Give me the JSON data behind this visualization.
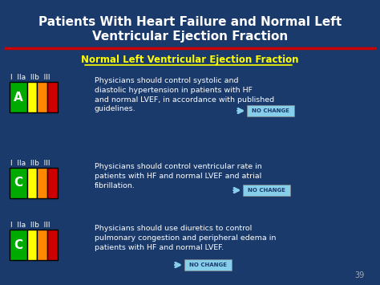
{
  "title_line1": "Patients With Heart Failure and Normal Left",
  "title_line2": "Ventricular Ejection Fraction",
  "subtitle": "Normal Left Ventricular Ejection Fraction",
  "bg_color": "#1a3a6b",
  "title_bg_color": "#1a3a6b",
  "red_line_color": "#cc0000",
  "subtitle_color": "#ffff00",
  "subtitle_underline": true,
  "title_color": "#ffffff",
  "text_color": "#ffffff",
  "rows": [
    {
      "class_label": "I  IIa  IIb  III",
      "grade": "A",
      "grade_bg": "#00aa00",
      "bar_colors": [
        "#ffff00",
        "#ff8800",
        "#cc0000"
      ],
      "text": "Physicians should control systolic and diastolic hypertension in patients with HF and normal LVEF, in accordance with published guidelines.",
      "arrow_label": "NO CHANGE"
    },
    {
      "class_label": "I  IIa  IIb  III",
      "grade": "C",
      "grade_bg": "#00aa00",
      "bar_colors": [
        "#ffff00",
        "#ff8800",
        "#cc0000"
      ],
      "text": "Physicians should control ventricular rate in patients with HF and normal LVEF and atrial fibrillation.",
      "arrow_label": "NO CHANGE"
    },
    {
      "class_label": "I  IIa  IIb  III",
      "grade": "C",
      "grade_bg": "#00aa00",
      "bar_colors": [
        "#ffff00",
        "#ff8800",
        "#cc0000"
      ],
      "text": "Physicians should use diuretics to control pulmonary congestion and peripheral edema in patients with HF and normal LVEF.",
      "arrow_label": "NO CHANGE"
    }
  ],
  "page_number": "39"
}
